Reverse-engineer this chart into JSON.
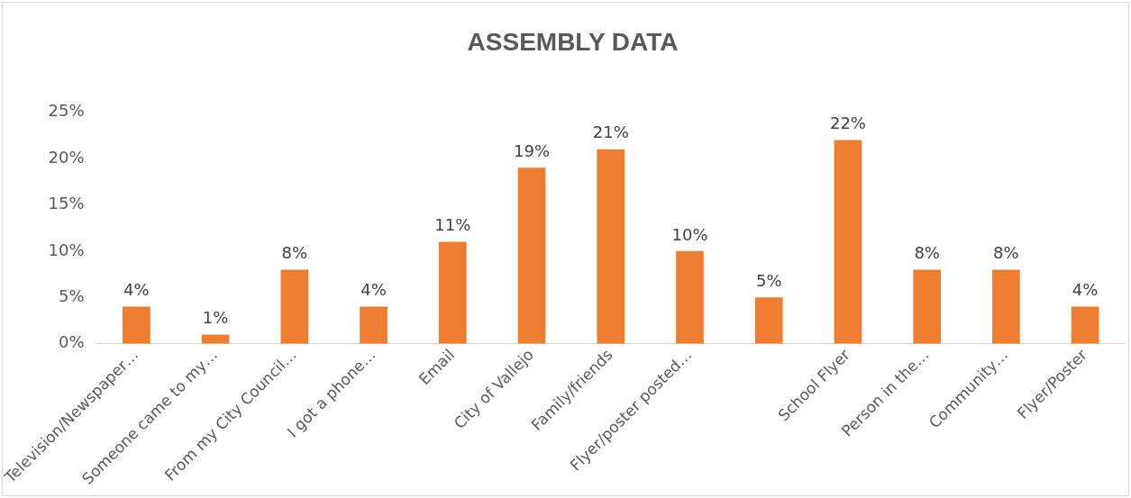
{
  "chart_data": {
    "type": "bar",
    "title": "ASSEMBLY DATA",
    "categories": [
      "Television/Newspaper…",
      "Someone came to my…",
      "From my City Council…",
      "I got a phone…",
      "Email",
      "City of Vallejo",
      "Family/friends",
      "Flyer/poster posted…",
      null,
      "School Flyer",
      "Person in the…",
      "Community…",
      "Flyer/Poster"
    ],
    "values": [
      4,
      1,
      8,
      4,
      11,
      19,
      21,
      10,
      5,
      22,
      8,
      8,
      4
    ],
    "value_labels": [
      "4%",
      "1%",
      "8%",
      "4%",
      "11%",
      "19%",
      "21%",
      "10%",
      "5%",
      "22%",
      "8%",
      "8%",
      "4%"
    ],
    "color": "#ed7d31",
    "ylim": [
      0,
      25
    ],
    "yticks": [
      {
        "value": 0,
        "label": "0%"
      },
      {
        "value": 5,
        "label": "5%"
      },
      {
        "value": 10,
        "label": "10%"
      },
      {
        "value": 15,
        "label": "15%"
      },
      {
        "value": 20,
        "label": "20%"
      },
      {
        "value": 25,
        "label": "25%"
      }
    ],
    "grid": false,
    "legend": false
  }
}
